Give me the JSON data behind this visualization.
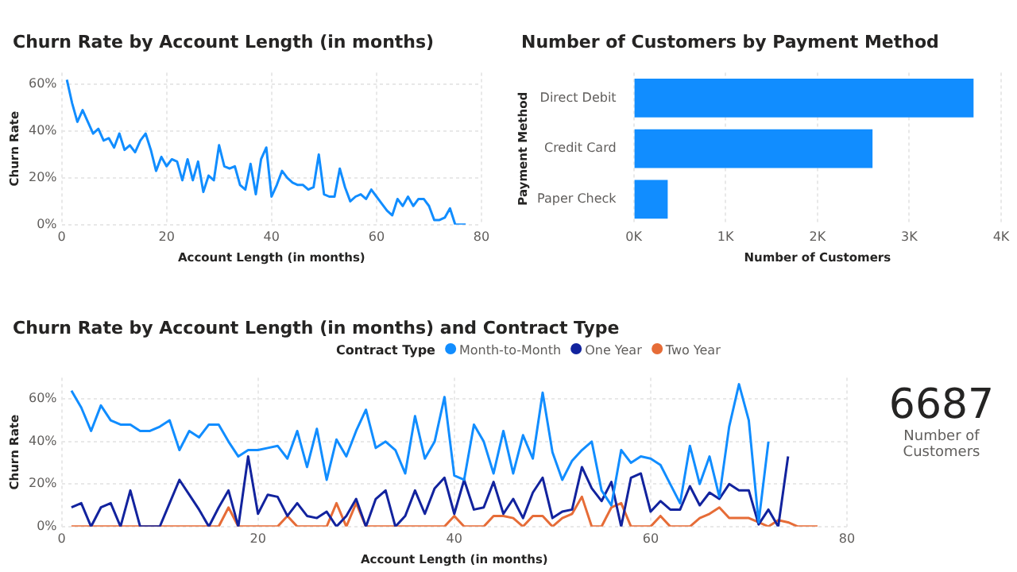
{
  "chart_data": [
    {
      "type": "line",
      "title": "Churn Rate by Account Length (in months)",
      "xlabel": "Account Length (in months)",
      "ylabel": "Churn Rate",
      "xlim": [
        0,
        80
      ],
      "xticks": [
        0,
        20,
        40,
        60,
        80
      ],
      "ylim": [
        0,
        65
      ],
      "yticks": [
        {
          "value": 0,
          "label": "0%"
        },
        {
          "value": 20,
          "label": "20%"
        },
        {
          "value": 40,
          "label": "40%"
        },
        {
          "value": 60,
          "label": "60%"
        }
      ],
      "grid": true,
      "legend": false,
      "x": [
        1,
        2,
        3,
        4,
        5,
        6,
        7,
        8,
        9,
        10,
        11,
        12,
        13,
        14,
        15,
        16,
        17,
        18,
        19,
        20,
        21,
        22,
        23,
        24,
        25,
        26,
        27,
        28,
        29,
        30,
        31,
        32,
        33,
        34,
        35,
        36,
        37,
        38,
        39,
        40,
        41,
        42,
        43,
        44,
        45,
        46,
        47,
        48,
        49,
        50,
        51,
        52,
        53,
        54,
        55,
        56,
        57,
        58,
        59,
        60,
        61,
        62,
        63,
        64,
        65,
        66,
        67,
        68,
        69,
        70,
        71,
        72,
        73,
        74,
        75,
        76,
        77
      ],
      "series": [
        {
          "color": "#118dff",
          "values": [
            62,
            52,
            44,
            49,
            44,
            39,
            41,
            36,
            37,
            33,
            39,
            32,
            34,
            31,
            36,
            39,
            32,
            23,
            29,
            25,
            28,
            27,
            19,
            28,
            19,
            27,
            14,
            21,
            19,
            34,
            25,
            24,
            25,
            17,
            15,
            26,
            13,
            28,
            33,
            12,
            17,
            23,
            20,
            18,
            17,
            17,
            15,
            16,
            30,
            13,
            12,
            12,
            24,
            16,
            10,
            12,
            13,
            11,
            15,
            12,
            9,
            6,
            4,
            11,
            8,
            12,
            8,
            11,
            11,
            8,
            2,
            2,
            3,
            7,
            0,
            0,
            0
          ]
        }
      ]
    },
    {
      "type": "bar",
      "orientation": "horizontal",
      "title": "Number of Customers by Payment Method",
      "xlabel": "Number of Customers",
      "ylabel": "Payment Method",
      "categories": [
        "Direct Debit",
        "Credit Card",
        "Paper Check"
      ],
      "values": [
        3700,
        2600,
        370
      ],
      "color": "#118dff",
      "xlim": [
        0,
        4000
      ],
      "xticks": [
        {
          "value": 0,
          "label": "0K"
        },
        {
          "value": 1000,
          "label": "1K"
        },
        {
          "value": 2000,
          "label": "2K"
        },
        {
          "value": 3000,
          "label": "3K"
        },
        {
          "value": 4000,
          "label": "4K"
        }
      ],
      "grid": "x",
      "legend": false
    },
    {
      "type": "line",
      "title": "Churn Rate by Account Length (in months) and Contract Type",
      "xlabel": "Account Length (in months)",
      "ylabel": "Churn Rate",
      "legend_title": "Contract Type",
      "legend": "top",
      "xlim": [
        0,
        80
      ],
      "xticks": [
        0,
        20,
        40,
        60,
        80
      ],
      "ylim": [
        0,
        70
      ],
      "yticks": [
        {
          "value": 0,
          "label": "0%"
        },
        {
          "value": 20,
          "label": "20%"
        },
        {
          "value": 40,
          "label": "40%"
        },
        {
          "value": 60,
          "label": "60%"
        }
      ],
      "grid": true,
      "x": [
        1,
        2,
        3,
        4,
        5,
        6,
        7,
        8,
        9,
        10,
        11,
        12,
        13,
        14,
        15,
        16,
        17,
        18,
        19,
        20,
        21,
        22,
        23,
        24,
        25,
        26,
        27,
        28,
        29,
        30,
        31,
        32,
        33,
        34,
        35,
        36,
        37,
        38,
        39,
        40,
        41,
        42,
        43,
        44,
        45,
        46,
        47,
        48,
        49,
        50,
        51,
        52,
        53,
        54,
        55,
        56,
        57,
        58,
        59,
        60,
        61,
        62,
        63,
        64,
        65,
        66,
        67,
        68,
        69,
        70,
        71,
        72,
        73,
        74,
        75,
        76,
        77
      ],
      "series": [
        {
          "name": "Month-to-Month",
          "color": "#118dff",
          "values": [
            64,
            56,
            45,
            57,
            50,
            48,
            48,
            45,
            45,
            47,
            50,
            36,
            45,
            42,
            48,
            48,
            40,
            33,
            36,
            36,
            37,
            38,
            32,
            45,
            28,
            46,
            22,
            41,
            33,
            45,
            55,
            37,
            40,
            36,
            25,
            52,
            32,
            40,
            61,
            24,
            22,
            48,
            40,
            25,
            45,
            25,
            43,
            32,
            63,
            35,
            22,
            31,
            36,
            40,
            17,
            10,
            36,
            30,
            33,
            32,
            29,
            20,
            11,
            38,
            20,
            33,
            14,
            47,
            67,
            50,
            2,
            40,
            null,
            null,
            null,
            null,
            null
          ]
        },
        {
          "name": "One Year",
          "color": "#12239e",
          "values": [
            9,
            11,
            0,
            9,
            11,
            0,
            17,
            0,
            0,
            0,
            11,
            22,
            15,
            8,
            0,
            9,
            17,
            0,
            33,
            6,
            15,
            14,
            5,
            11,
            5,
            4,
            7,
            0,
            5,
            13,
            0,
            13,
            17,
            0,
            5,
            17,
            6,
            18,
            23,
            6,
            22,
            8,
            9,
            21,
            6,
            13,
            4,
            16,
            23,
            4,
            7,
            8,
            28,
            18,
            12,
            21,
            0,
            23,
            25,
            7,
            12,
            8,
            8,
            19,
            10,
            16,
            13,
            20,
            17,
            17,
            1,
            8,
            0,
            33,
            null,
            null,
            null
          ]
        },
        {
          "name": "Two Year",
          "color": "#e66c37",
          "values": [
            0,
            0,
            0,
            0,
            0,
            0,
            0,
            0,
            0,
            0,
            0,
            0,
            0,
            0,
            0,
            0,
            9,
            0,
            0,
            0,
            0,
            0,
            5,
            0,
            0,
            0,
            0,
            11,
            0,
            11,
            0,
            0,
            0,
            0,
            0,
            0,
            0,
            0,
            0,
            5,
            0,
            0,
            0,
            5,
            5,
            4,
            0,
            5,
            5,
            0,
            4,
            6,
            14,
            0,
            0,
            9,
            11,
            0,
            0,
            0,
            5,
            0,
            0,
            0,
            4,
            6,
            9,
            4,
            4,
            4,
            2,
            0,
            3,
            2,
            0,
            0,
            0
          ]
        }
      ]
    },
    {
      "type": "other",
      "annotations": [
        "6687",
        "Number of Customers"
      ]
    }
  ]
}
